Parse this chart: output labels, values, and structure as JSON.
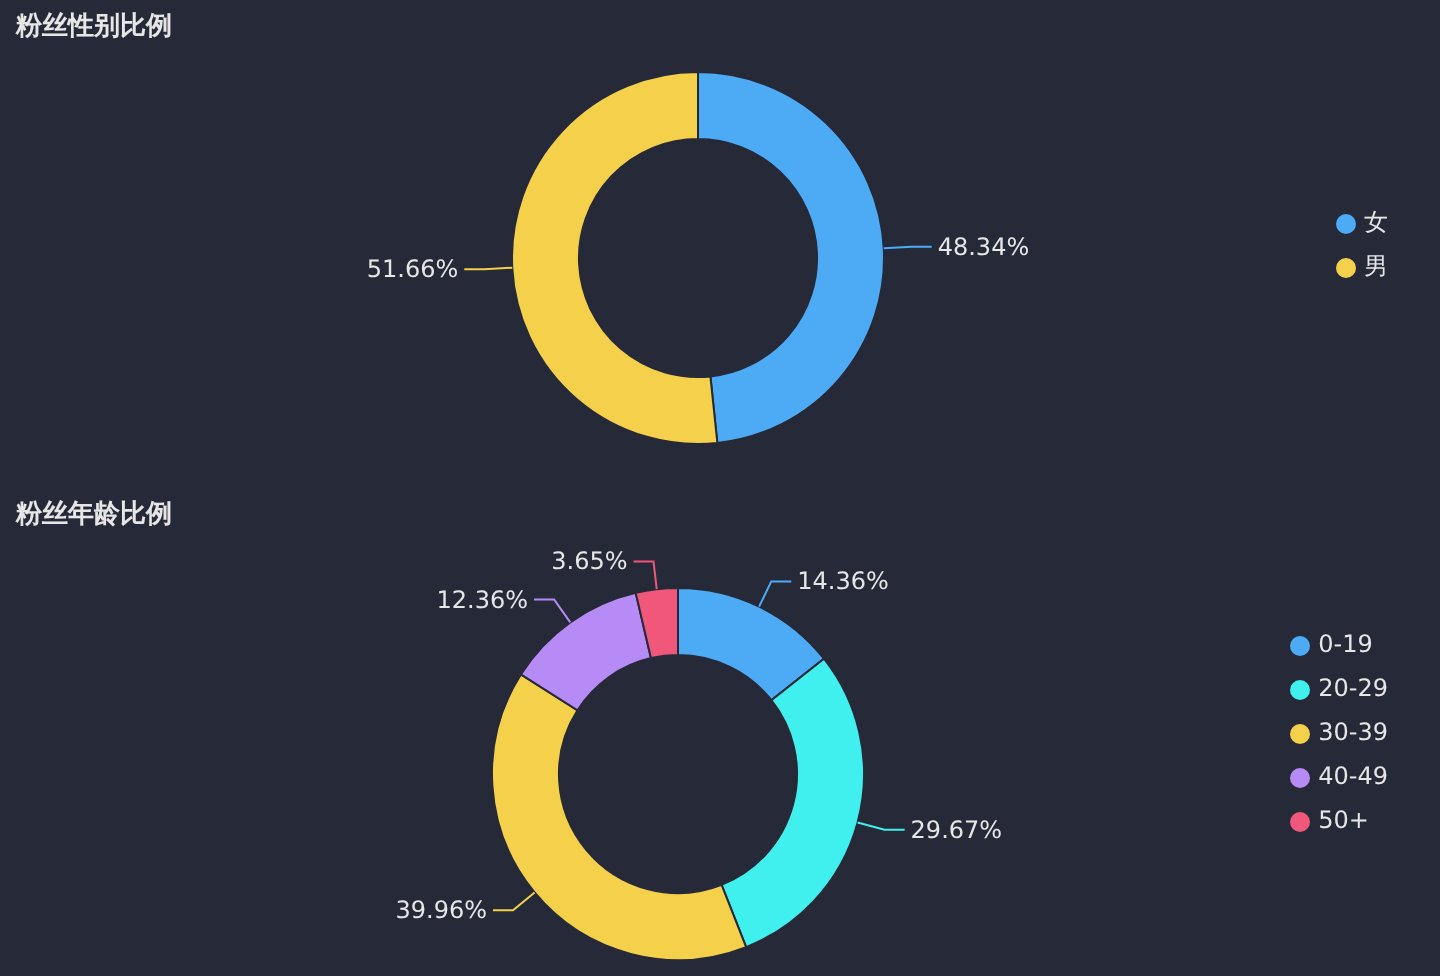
{
  "chart_data": [
    {
      "type": "donut",
      "title": "粉丝性别比例",
      "categories": [
        "女",
        "男"
      ],
      "values": [
        48.34,
        51.66
      ],
      "colors": [
        "#4dabf5",
        "#f5d04a"
      ],
      "value_labels": [
        "48.34%",
        "51.66%"
      ],
      "legend": "right"
    },
    {
      "type": "donut",
      "title": "粉丝年龄比例",
      "categories": [
        "0-19",
        "20-29",
        "30-39",
        "40-49",
        "50+"
      ],
      "values": [
        14.36,
        29.67,
        39.96,
        12.36,
        3.65
      ],
      "colors": [
        "#4dabf5",
        "#3ff0ee",
        "#f5d04a",
        "#b68bf5",
        "#f0577a"
      ],
      "value_labels": [
        "14.36%",
        "29.67%",
        "39.96%",
        "12.36%",
        "3.65%"
      ],
      "legend": "right"
    }
  ]
}
